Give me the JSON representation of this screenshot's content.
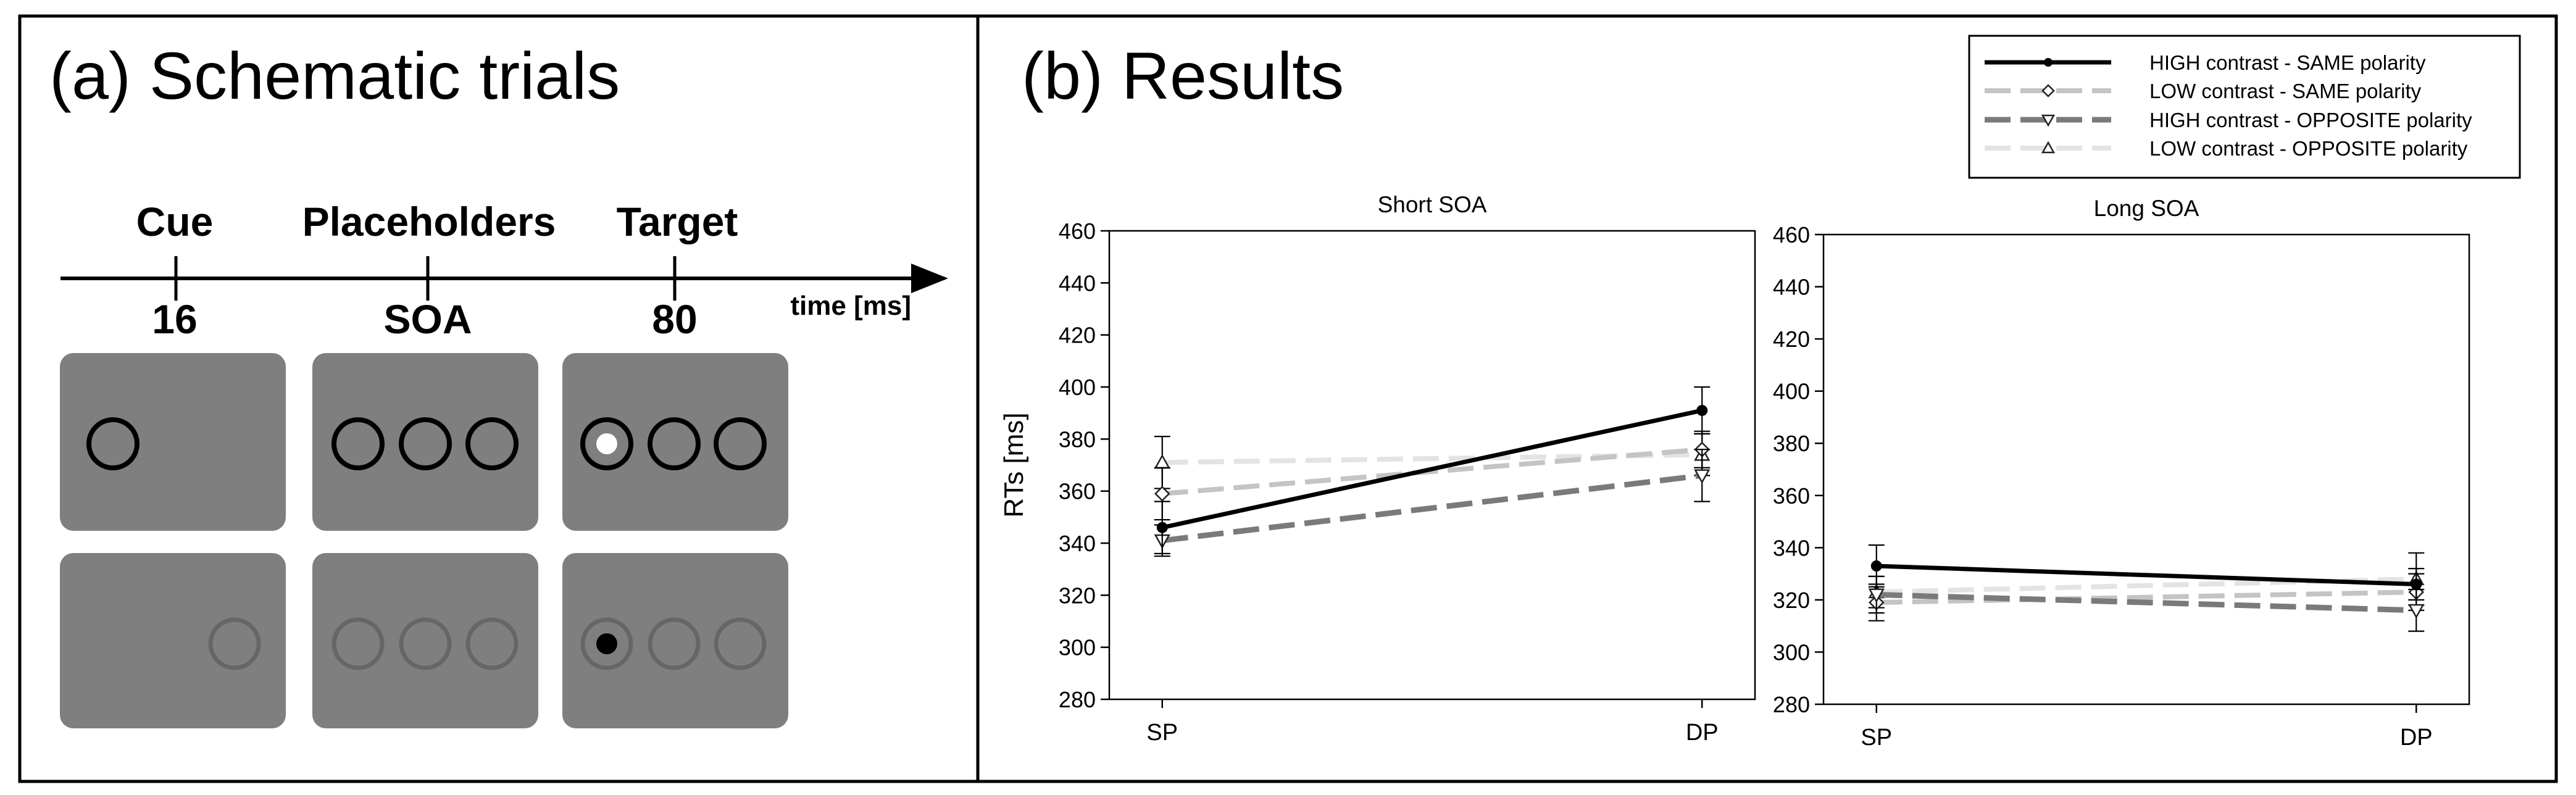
{
  "panel_a": {
    "title": "(a) Schematic trials",
    "timeline": {
      "labels": [
        "Cue",
        "Placeholders",
        "Target"
      ],
      "values": [
        "16",
        "SOA",
        "80"
      ],
      "unit": "time [ms]"
    },
    "colors": {
      "screen": "#7f7f7f",
      "circle_high": "#000000",
      "circle_low": "#666666",
      "target_high": "#ffffff",
      "target_low": "#000000"
    }
  },
  "panel_b": {
    "title": "(b) Results"
  },
  "legend": {
    "entries": [
      "HIGH contrast - SAME polarity",
      "LOW contrast - SAME polarity",
      "HIGH contrast - OPPOSITE polarity",
      "LOW contrast - OPPOSITE polarity"
    ]
  },
  "chart_data": [
    {
      "type": "line",
      "title": "Short SOA",
      "xlabel": "",
      "ylabel": "RTs [ms]",
      "categories": [
        "SP",
        "DP"
      ],
      "ylim": [
        280,
        460
      ],
      "yticks": [
        280,
        300,
        320,
        340,
        360,
        380,
        400,
        420,
        440,
        460
      ],
      "series": [
        {
          "name": "HIGH contrast - SAME polarity",
          "values": [
            346,
            391
          ],
          "errors": [
            10,
            9
          ],
          "color": "#000000",
          "marker": "dot"
        },
        {
          "name": "LOW contrast - SAME polarity",
          "values": [
            359,
            376
          ],
          "errors": [
            10,
            7
          ],
          "color": "#c4c4c4",
          "marker": "diamond"
        },
        {
          "name": "HIGH contrast - OPPOSITE polarity",
          "values": [
            341,
            366
          ],
          "errors": [
            6,
            10
          ],
          "color": "#7a7a7a",
          "marker": "triangle-down"
        },
        {
          "name": "LOW contrast - OPPOSITE polarity",
          "values": [
            371,
            374
          ],
          "errors": [
            10,
            8
          ],
          "color": "#e3e3e3",
          "marker": "triangle-up"
        }
      ]
    },
    {
      "type": "line",
      "title": "Long SOA",
      "xlabel": "",
      "ylabel": "",
      "categories": [
        "SP",
        "DP"
      ],
      "ylim": [
        280,
        460
      ],
      "yticks": [
        280,
        300,
        320,
        340,
        360,
        380,
        400,
        420,
        440,
        460
      ],
      "series": [
        {
          "name": "HIGH contrast - SAME polarity",
          "values": [
            333,
            326
          ],
          "errors": [
            8,
            6
          ],
          "color": "#000000",
          "marker": "dot"
        },
        {
          "name": "LOW contrast - SAME polarity",
          "values": [
            319,
            323
          ],
          "errors": [
            7,
            7
          ],
          "color": "#c4c4c4",
          "marker": "diamond"
        },
        {
          "name": "HIGH contrast - OPPOSITE polarity",
          "values": [
            322,
            316
          ],
          "errors": [
            7,
            8
          ],
          "color": "#7a7a7a",
          "marker": "triangle-down"
        },
        {
          "name": "LOW contrast - OPPOSITE polarity",
          "values": [
            323,
            328
          ],
          "errors": [
            6,
            10
          ],
          "color": "#e3e3e3",
          "marker": "triangle-up"
        }
      ]
    }
  ]
}
